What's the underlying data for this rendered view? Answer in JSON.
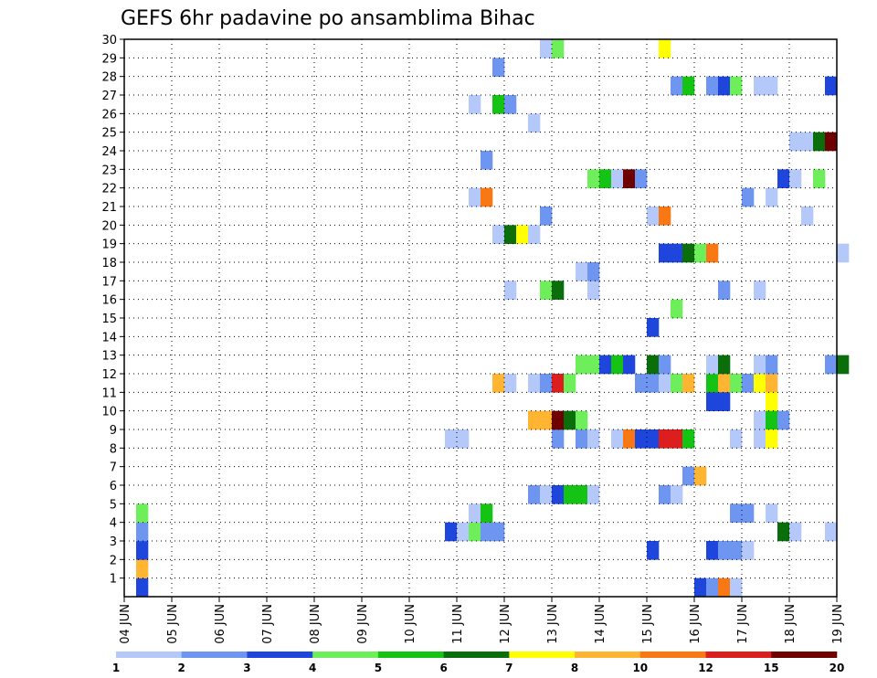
{
  "chart_data": {
    "type": "heatmap",
    "title": "GEFS 6hr padavine po ansamblima Bihac",
    "y_ticks": [
      "1",
      "2",
      "3",
      "4",
      "5",
      "6",
      "7",
      "8",
      "9",
      "10",
      "11",
      "12",
      "13",
      "14",
      "15",
      "16",
      "17",
      "18",
      "19",
      "20",
      "21",
      "22",
      "23",
      "24",
      "25",
      "26",
      "27",
      "28",
      "29",
      "30"
    ],
    "x_ticks": [
      "04 JUN",
      "05 JUN",
      "06 JUN",
      "07 JUN",
      "08 JUN",
      "09 JUN",
      "10 JUN",
      "11 JUN",
      "12 JUN",
      "13 JUN",
      "14 JUN",
      "15 JUN",
      "16 JUN",
      "17 JUN",
      "18 JUN",
      "19 JUN"
    ],
    "x_range_days": [
      0,
      15
    ],
    "y_range_members": [
      0,
      30
    ],
    "grid": "dotted",
    "colorbar": {
      "colors": [
        "#b4c8fa",
        "#6e96f0",
        "#1e46dc",
        "#6eee5a",
        "#14c314",
        "#0a6e0a",
        "#ffff00",
        "#ffb432",
        "#fa7814",
        "#dc1e1e",
        "#6e0000"
      ],
      "labels": [
        "1",
        "2",
        "3",
        "4",
        "5",
        "6",
        "7",
        "8",
        "10",
        "12",
        "15",
        "20"
      ]
    },
    "cells": [
      {
        "d": 0.25,
        "m": 0,
        "c": 2
      },
      {
        "d": 0.25,
        "m": 1,
        "c": 7
      },
      {
        "d": 0.25,
        "m": 2,
        "c": 2
      },
      {
        "d": 0.25,
        "m": 3,
        "c": 1
      },
      {
        "d": 0.25,
        "m": 4,
        "c": 3
      },
      {
        "d": 6.75,
        "m": 3,
        "c": 2
      },
      {
        "d": 7.0,
        "m": 3,
        "c": 0
      },
      {
        "d": 7.25,
        "m": 3,
        "c": 3
      },
      {
        "d": 7.5,
        "m": 3,
        "c": 1
      },
      {
        "d": 7.75,
        "m": 3,
        "c": 1
      },
      {
        "d": 7.25,
        "m": 4,
        "c": 0
      },
      {
        "d": 7.5,
        "m": 4,
        "c": 4
      },
      {
        "d": 6.75,
        "m": 8,
        "c": 0
      },
      {
        "d": 7.0,
        "m": 8,
        "c": 0
      },
      {
        "d": 8.5,
        "m": 5,
        "c": 1
      },
      {
        "d": 8.75,
        "m": 5,
        "c": 0
      },
      {
        "d": 9.0,
        "m": 5,
        "c": 2
      },
      {
        "d": 9.25,
        "m": 5,
        "c": 4
      },
      {
        "d": 9.5,
        "m": 5,
        "c": 4
      },
      {
        "d": 9.75,
        "m": 5,
        "c": 0
      },
      {
        "d": 9.0,
        "m": 8,
        "c": 1
      },
      {
        "d": 9.5,
        "m": 8,
        "c": 1
      },
      {
        "d": 9.75,
        "m": 8,
        "c": 0
      },
      {
        "d": 10.25,
        "m": 8,
        "c": 0
      },
      {
        "d": 10.5,
        "m": 8,
        "c": 8
      },
      {
        "d": 10.75,
        "m": 8,
        "c": 2
      },
      {
        "d": 11.0,
        "m": 8,
        "c": 2
      },
      {
        "d": 11.25,
        "m": 8,
        "c": 9
      },
      {
        "d": 11.5,
        "m": 8,
        "c": 9
      },
      {
        "d": 11.75,
        "m": 8,
        "c": 4
      },
      {
        "d": 8.5,
        "m": 9,
        "c": 7
      },
      {
        "d": 8.75,
        "m": 9,
        "c": 7
      },
      {
        "d": 9.0,
        "m": 9,
        "c": 10
      },
      {
        "d": 9.25,
        "m": 9,
        "c": 5
      },
      {
        "d": 9.5,
        "m": 9,
        "c": 3
      },
      {
        "d": 7.75,
        "m": 11,
        "c": 7
      },
      {
        "d": 8.0,
        "m": 11,
        "c": 0
      },
      {
        "d": 8.5,
        "m": 11,
        "c": 0
      },
      {
        "d": 8.75,
        "m": 11,
        "c": 1
      },
      {
        "d": 9.0,
        "m": 11,
        "c": 9
      },
      {
        "d": 9.25,
        "m": 11,
        "c": 3
      },
      {
        "d": 10.75,
        "m": 11,
        "c": 1
      },
      {
        "d": 11.0,
        "m": 11,
        "c": 1
      },
      {
        "d": 11.25,
        "m": 11,
        "c": 0
      },
      {
        "d": 11.5,
        "m": 11,
        "c": 3
      },
      {
        "d": 11.75,
        "m": 11,
        "c": 7
      },
      {
        "d": 12.25,
        "m": 11,
        "c": 4
      },
      {
        "d": 12.5,
        "m": 11,
        "c": 7
      },
      {
        "d": 12.75,
        "m": 11,
        "c": 3
      },
      {
        "d": 13.0,
        "m": 11,
        "c": 1
      },
      {
        "d": 13.25,
        "m": 11,
        "c": 6
      },
      {
        "d": 13.5,
        "m": 11,
        "c": 7
      },
      {
        "d": 9.5,
        "m": 12,
        "c": 3
      },
      {
        "d": 9.75,
        "m": 12,
        "c": 3
      },
      {
        "d": 10.0,
        "m": 12,
        "c": 2
      },
      {
        "d": 10.25,
        "m": 12,
        "c": 4
      },
      {
        "d": 10.5,
        "m": 12,
        "c": 2
      },
      {
        "d": 11.0,
        "m": 12,
        "c": 5
      },
      {
        "d": 11.25,
        "m": 12,
        "c": 1
      },
      {
        "d": 12.25,
        "m": 12,
        "c": 0
      },
      {
        "d": 12.5,
        "m": 12,
        "c": 5
      },
      {
        "d": 13.25,
        "m": 12,
        "c": 0
      },
      {
        "d": 13.5,
        "m": 12,
        "c": 1
      },
      {
        "d": 14.75,
        "m": 12,
        "c": 1
      },
      {
        "d": 12.25,
        "m": 10,
        "c": 2
      },
      {
        "d": 12.5,
        "m": 10,
        "c": 2
      },
      {
        "d": 13.5,
        "m": 10,
        "c": 6
      },
      {
        "d": 13.25,
        "m": 9,
        "c": 0
      },
      {
        "d": 13.5,
        "m": 9,
        "c": 4
      },
      {
        "d": 13.75,
        "m": 9,
        "c": 1
      },
      {
        "d": 12.75,
        "m": 8,
        "c": 0
      },
      {
        "d": 13.25,
        "m": 8,
        "c": 0
      },
      {
        "d": 13.5,
        "m": 8,
        "c": 6
      },
      {
        "d": 11.75,
        "m": 6,
        "c": 1
      },
      {
        "d": 12.0,
        "m": 6,
        "c": 7
      },
      {
        "d": 11.25,
        "m": 5,
        "c": 1
      },
      {
        "d": 11.5,
        "m": 5,
        "c": 0
      },
      {
        "d": 12.75,
        "m": 4,
        "c": 1
      },
      {
        "d": 13.0,
        "m": 4,
        "c": 1
      },
      {
        "d": 13.5,
        "m": 4,
        "c": 0
      },
      {
        "d": 13.75,
        "m": 3,
        "c": 5
      },
      {
        "d": 14.0,
        "m": 3,
        "c": 0
      },
      {
        "d": 14.75,
        "m": 3,
        "c": 0
      },
      {
        "d": 11.0,
        "m": 2,
        "c": 2
      },
      {
        "d": 12.25,
        "m": 2,
        "c": 2
      },
      {
        "d": 12.5,
        "m": 2,
        "c": 1
      },
      {
        "d": 12.75,
        "m": 2,
        "c": 1
      },
      {
        "d": 13.0,
        "m": 2,
        "c": 0
      },
      {
        "d": 12.0,
        "m": 0,
        "c": 2
      },
      {
        "d": 12.25,
        "m": 0,
        "c": 1
      },
      {
        "d": 12.5,
        "m": 0,
        "c": 8
      },
      {
        "d": 12.75,
        "m": 0,
        "c": 0
      },
      {
        "d": 15.0,
        "m": 12,
        "c": 5
      },
      {
        "d": 11.0,
        "m": 14,
        "c": 2
      },
      {
        "d": 11.5,
        "m": 15,
        "c": 3
      },
      {
        "d": 8.0,
        "m": 16,
        "c": 0
      },
      {
        "d": 8.75,
        "m": 16,
        "c": 3
      },
      {
        "d": 9.0,
        "m": 16,
        "c": 5
      },
      {
        "d": 9.75,
        "m": 16,
        "c": 0
      },
      {
        "d": 12.5,
        "m": 16,
        "c": 1
      },
      {
        "d": 13.25,
        "m": 16,
        "c": 0
      },
      {
        "d": 9.5,
        "m": 17,
        "c": 0
      },
      {
        "d": 9.75,
        "m": 17,
        "c": 1
      },
      {
        "d": 11.25,
        "m": 18,
        "c": 2
      },
      {
        "d": 11.5,
        "m": 18,
        "c": 2
      },
      {
        "d": 11.75,
        "m": 18,
        "c": 5
      },
      {
        "d": 12.0,
        "m": 18,
        "c": 3
      },
      {
        "d": 12.25,
        "m": 18,
        "c": 8
      },
      {
        "d": 15.0,
        "m": 18,
        "c": 0
      },
      {
        "d": 7.75,
        "m": 19,
        "c": 0
      },
      {
        "d": 8.0,
        "m": 19,
        "c": 5
      },
      {
        "d": 8.25,
        "m": 19,
        "c": 6
      },
      {
        "d": 8.5,
        "m": 19,
        "c": 0
      },
      {
        "d": 8.75,
        "m": 20,
        "c": 1
      },
      {
        "d": 11.0,
        "m": 20,
        "c": 0
      },
      {
        "d": 11.25,
        "m": 20,
        "c": 8
      },
      {
        "d": 14.25,
        "m": 20,
        "c": 0
      },
      {
        "d": 7.25,
        "m": 21,
        "c": 0
      },
      {
        "d": 7.5,
        "m": 21,
        "c": 8
      },
      {
        "d": 13.0,
        "m": 21,
        "c": 1
      },
      {
        "d": 13.5,
        "m": 21,
        "c": 0
      },
      {
        "d": 9.75,
        "m": 22,
        "c": 3
      },
      {
        "d": 10.0,
        "m": 22,
        "c": 4
      },
      {
        "d": 10.25,
        "m": 22,
        "c": 0
      },
      {
        "d": 10.5,
        "m": 22,
        "c": 10
      },
      {
        "d": 10.75,
        "m": 22,
        "c": 1
      },
      {
        "d": 13.75,
        "m": 22,
        "c": 2
      },
      {
        "d": 14.0,
        "m": 22,
        "c": 0
      },
      {
        "d": 14.5,
        "m": 22,
        "c": 3
      },
      {
        "d": 7.5,
        "m": 23,
        "c": 1
      },
      {
        "d": 14.0,
        "m": 24,
        "c": 0
      },
      {
        "d": 14.25,
        "m": 24,
        "c": 0
      },
      {
        "d": 14.5,
        "m": 24,
        "c": 5
      },
      {
        "d": 14.75,
        "m": 24,
        "c": 10
      },
      {
        "d": 8.5,
        "m": 25,
        "c": 0
      },
      {
        "d": 7.25,
        "m": 26,
        "c": 0
      },
      {
        "d": 7.75,
        "m": 26,
        "c": 4
      },
      {
        "d": 8.0,
        "m": 26,
        "c": 1
      },
      {
        "d": 11.5,
        "m": 27,
        "c": 1
      },
      {
        "d": 11.75,
        "m": 27,
        "c": 4
      },
      {
        "d": 12.25,
        "m": 27,
        "c": 1
      },
      {
        "d": 12.5,
        "m": 27,
        "c": 2
      },
      {
        "d": 12.75,
        "m": 27,
        "c": 3
      },
      {
        "d": 13.25,
        "m": 27,
        "c": 0
      },
      {
        "d": 13.5,
        "m": 27,
        "c": 0
      },
      {
        "d": 14.75,
        "m": 27,
        "c": 2
      },
      {
        "d": 7.75,
        "m": 28,
        "c": 1
      },
      {
        "d": 8.75,
        "m": 29,
        "c": 0
      },
      {
        "d": 9.0,
        "m": 29,
        "c": 3
      },
      {
        "d": 11.25,
        "m": 29,
        "c": 6
      }
    ]
  }
}
